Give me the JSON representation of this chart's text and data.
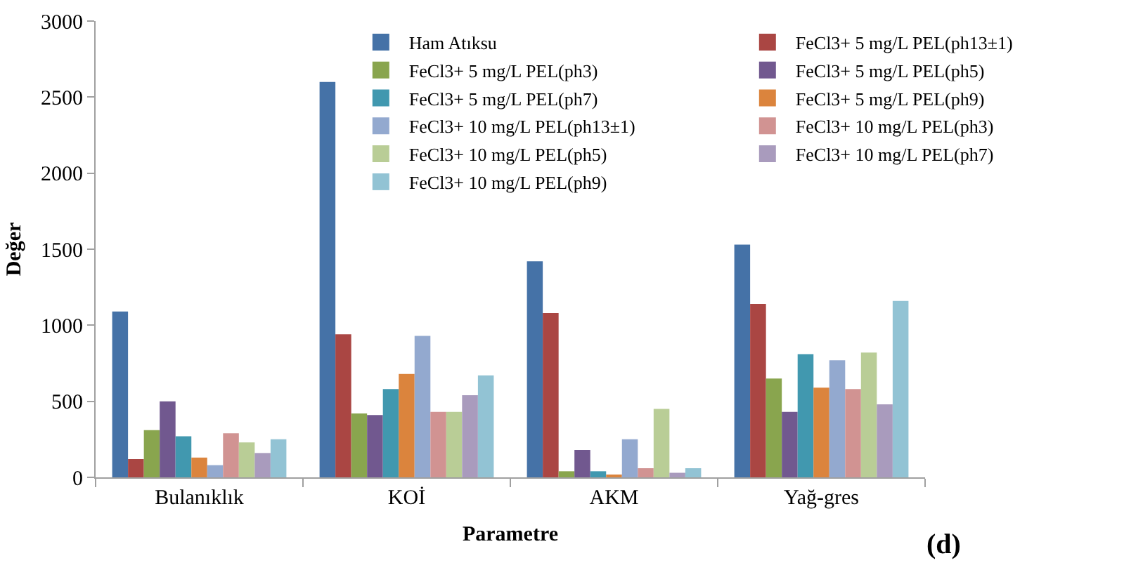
{
  "chart_data": {
    "type": "bar",
    "xlabel": "Parametre",
    "ylabel": "Değer",
    "categories": [
      "Bulanıklık",
      "KOİ",
      "AKM",
      "Yağ-gres"
    ],
    "ylim": [
      0,
      3000
    ],
    "yticks": [
      0,
      500,
      1000,
      1500,
      2000,
      2500,
      3000
    ],
    "grid": false,
    "legend": "top right",
    "annotations": [
      "(d)"
    ],
    "series": [
      {
        "name": "Ham Atıksu",
        "color": "#4572a7",
        "values": [
          1090,
          2600,
          1420,
          1530
        ]
      },
      {
        "name": "FeCl3+ 5 mg/L PEL(ph13±1)",
        "color": "#aa4643",
        "values": [
          120,
          940,
          1080,
          1140
        ]
      },
      {
        "name": "FeCl3+ 5 mg/L PEL(ph3)",
        "color": "#89a54e",
        "values": [
          310,
          420,
          40,
          650
        ]
      },
      {
        "name": "FeCl3+ 5 mg/L PEL(ph5)",
        "color": "#71588f",
        "values": [
          500,
          410,
          180,
          430
        ]
      },
      {
        "name": "FeCl3+ 5 mg/L PEL(ph7)",
        "color": "#4198af",
        "values": [
          270,
          580,
          40,
          810
        ]
      },
      {
        "name": "FeCl3+ 5 mg/L PEL(ph9)",
        "color": "#db843d",
        "values": [
          130,
          680,
          10,
          590
        ]
      },
      {
        "name": "FeCl3+ 10 mg/L PEL(ph13±1)",
        "color": "#93a9cf",
        "values": [
          80,
          930,
          250,
          770
        ]
      },
      {
        "name": "FeCl3+ 10 mg/L PEL(ph3)",
        "color": "#d19392",
        "values": [
          290,
          430,
          60,
          580
        ]
      },
      {
        "name": "FeCl3+ 10 mg/L PEL(ph5)",
        "color": "#b9cd96",
        "values": [
          230,
          430,
          450,
          820
        ]
      },
      {
        "name": "FeCl3+ 10 mg/L PEL(ph7)",
        "color": "#a99bbd",
        "values": [
          160,
          540,
          30,
          480
        ]
      },
      {
        "name": "FeCl3+ 10 mg/L PEL(ph9)",
        "color": "#92c3d4",
        "values": [
          250,
          670,
          60,
          1160
        ]
      }
    ]
  }
}
